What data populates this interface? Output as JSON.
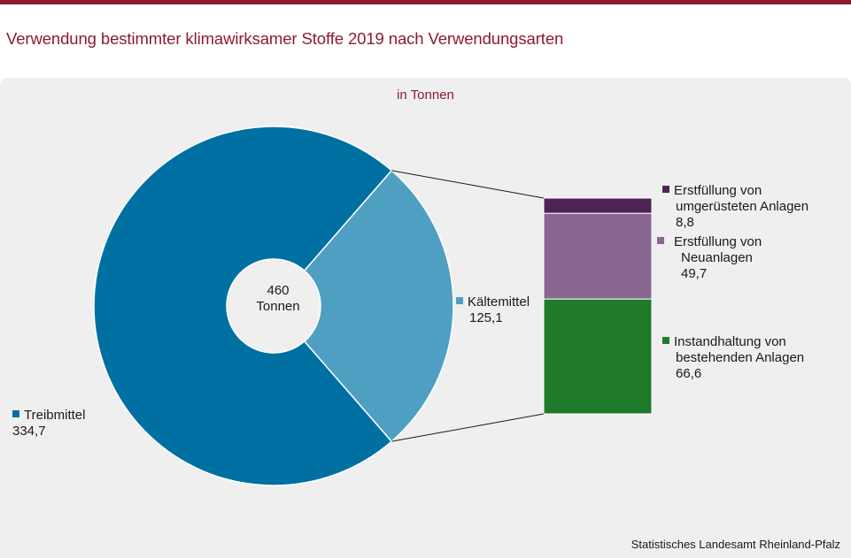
{
  "title": "Verwendung bestimmter klimawirksamer Stoffe 2019 nach Verwendungsarten",
  "unit_label": "in Tonnen",
  "source": "Statistisches Landesamt Rheinland-Pfalz",
  "center": {
    "value": "460",
    "unit": "Tonnen"
  },
  "colors": {
    "brand": "#8c1c2f",
    "treibmittel": "#0070a2",
    "kaeltemittel": "#4f9fc3",
    "umgeruestet": "#4f2255",
    "neuanlagen": "#8a6790",
    "instandhaltung": "#1f7a2c",
    "panel": "#efefef"
  },
  "chart_data": [
    {
      "type": "pie",
      "variant": "donut",
      "total": 460,
      "total_label": "460 Tonnen",
      "slices": [
        {
          "key": "treibmittel",
          "name": "Treibmittel",
          "value": 334.7,
          "value_label": "334,7"
        },
        {
          "key": "kaeltemittel",
          "name": "Kältemittel",
          "value": 125.1,
          "value_label": "125,1"
        }
      ]
    },
    {
      "type": "bar",
      "variant": "stacked-breakdown",
      "breakdown_of": "Kältemittel",
      "segments": [
        {
          "key": "instandhaltung",
          "name_lines": [
            "Instandhaltung  von",
            "bestehenden Anlagen"
          ],
          "value": 66.6,
          "value_label": "66,6"
        },
        {
          "key": "neuanlagen",
          "name_lines": [
            "Erstfüllung  von",
            "Neuanlagen"
          ],
          "value": 49.7,
          "value_label": "49,7"
        },
        {
          "key": "umgeruestet",
          "name_lines": [
            "Erstfüllung  von",
            "umgerüsteten  Anlagen"
          ],
          "value": 8.8,
          "value_label": "8,8"
        }
      ]
    }
  ]
}
